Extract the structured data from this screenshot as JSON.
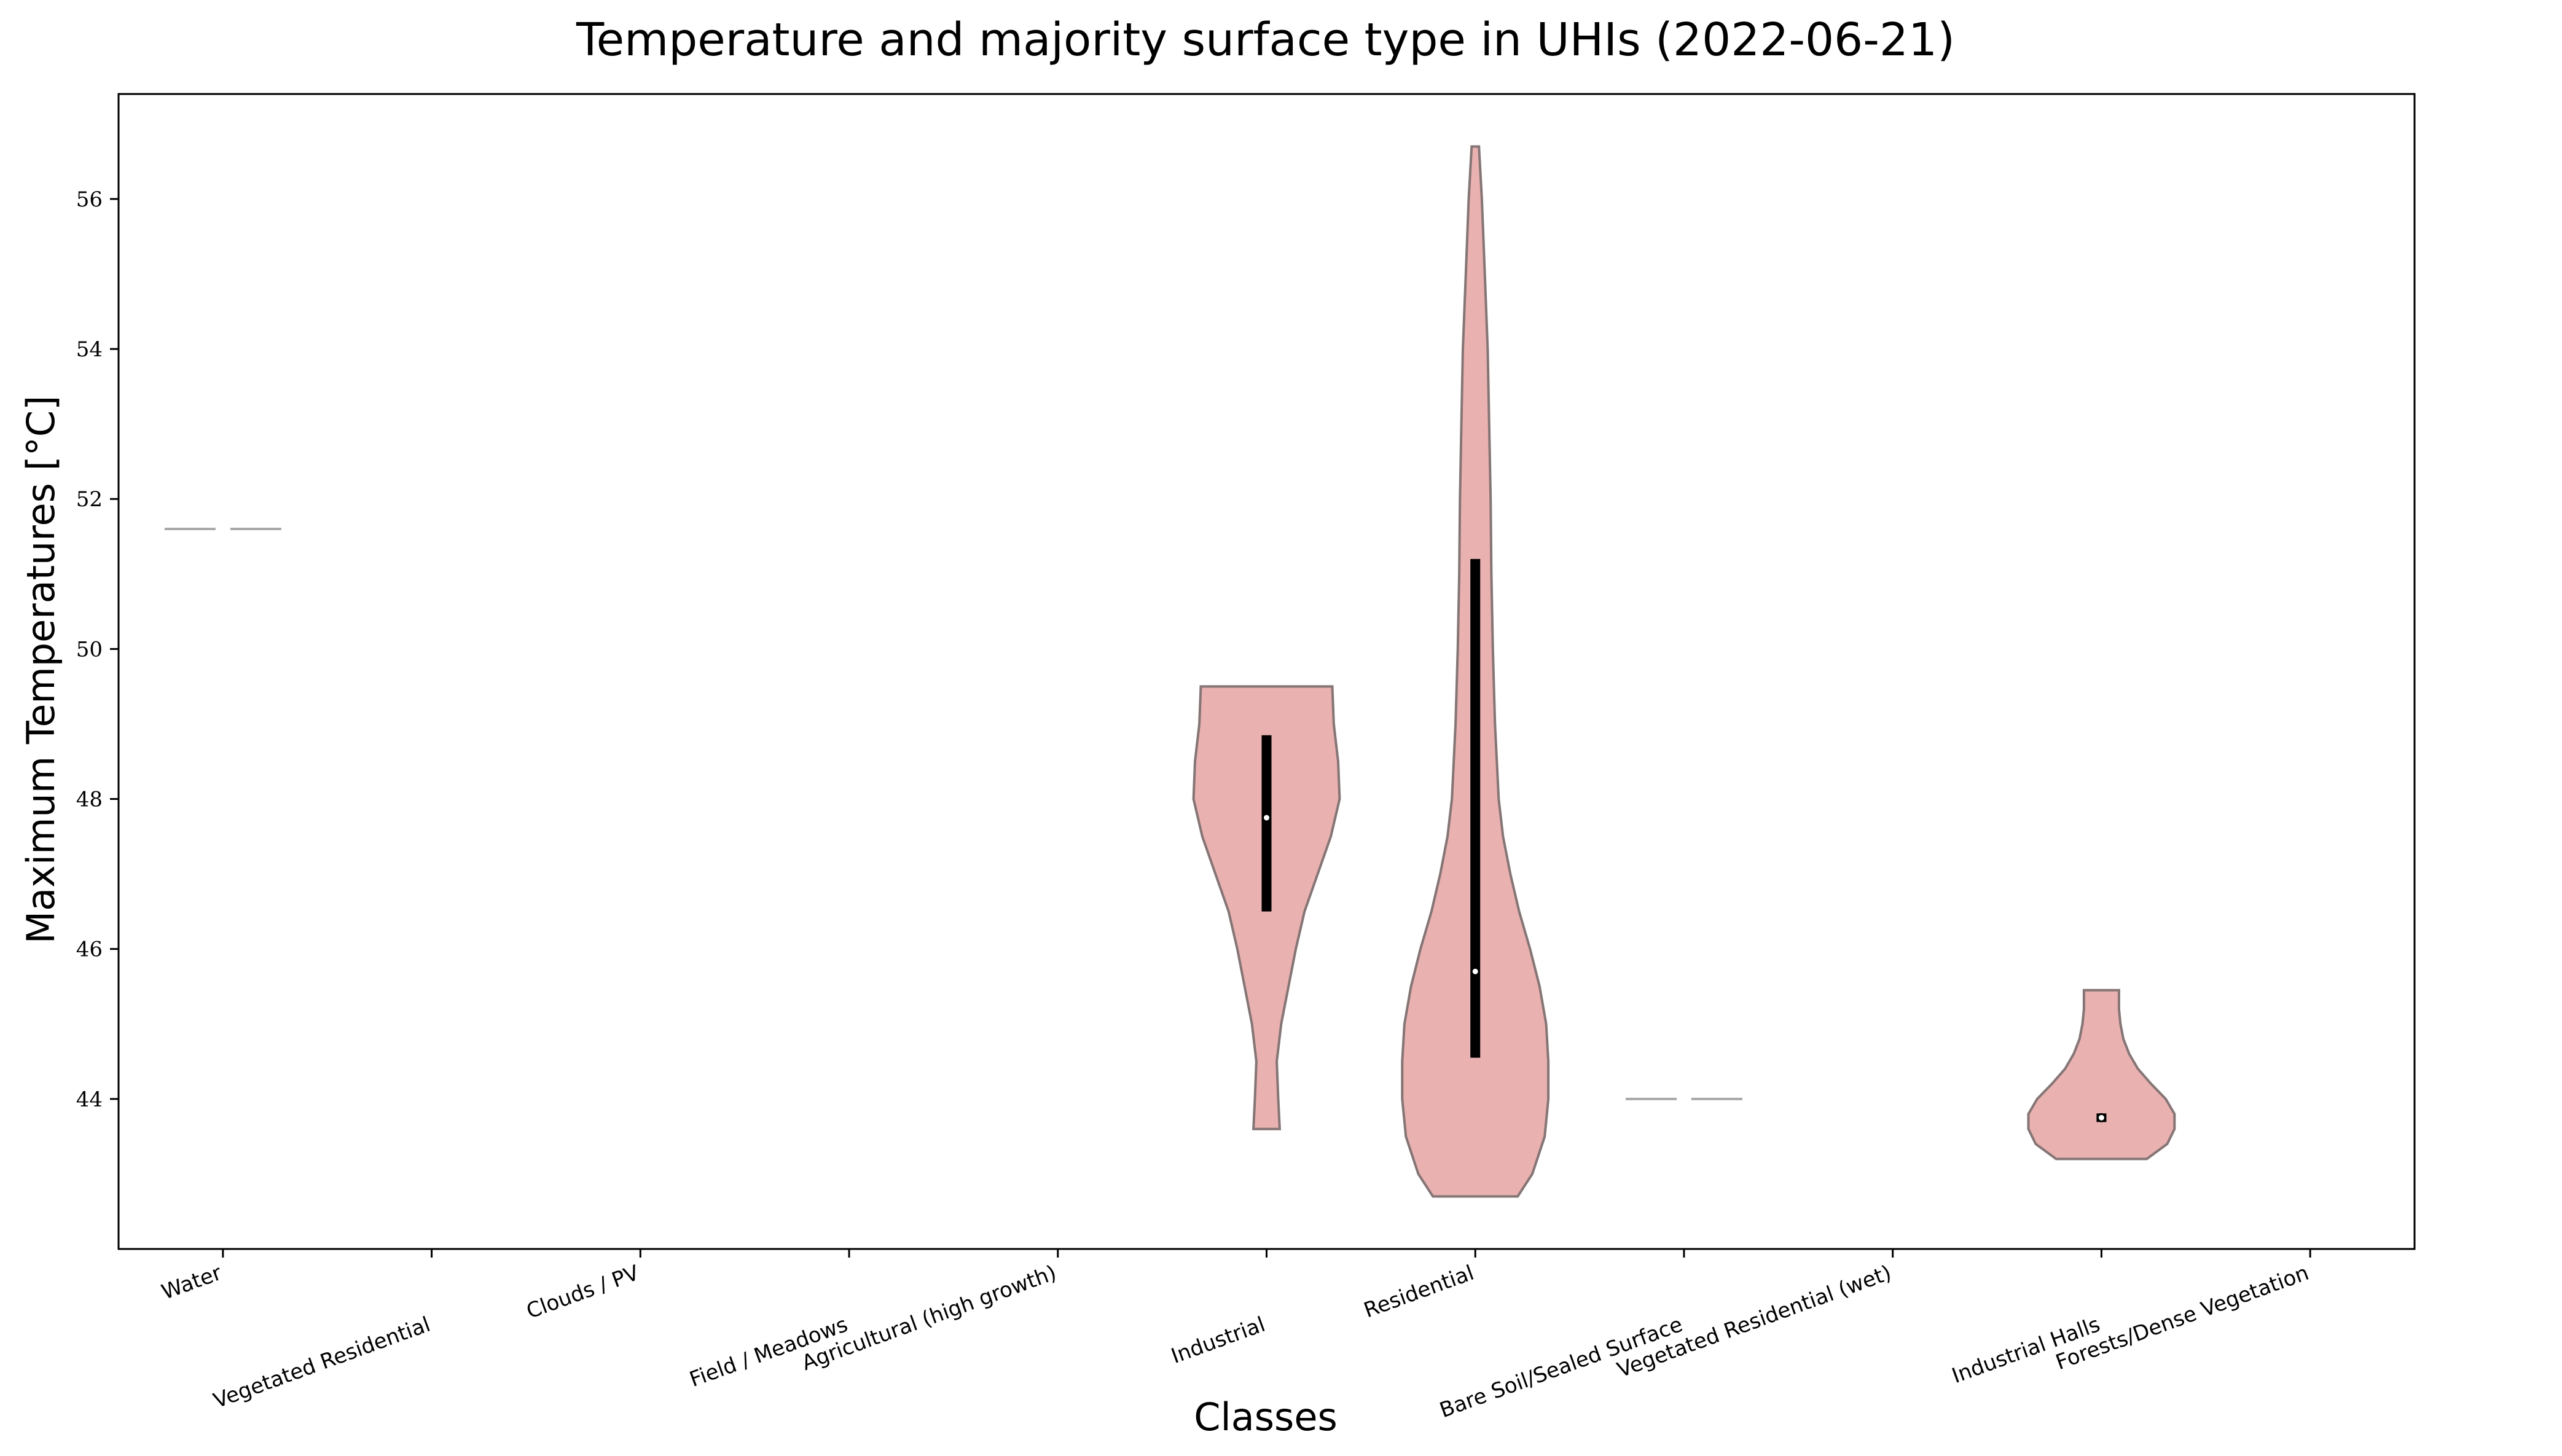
{
  "chart_data": {
    "type": "violin",
    "title": "Temperature and majority surface type in UHIs (2022-06-21)",
    "xlabel": "Classes",
    "ylabel": "Maximum Temperatures [°C]",
    "ylim": [
      42.0,
      57.4
    ],
    "yticks": [
      44,
      46,
      48,
      50,
      52,
      54,
      56
    ],
    "categories": [
      "Water",
      "Vegetated Residential",
      "Clouds / PV",
      "Field / Meadows",
      "Agricultural (high growth)",
      "Industrial",
      "Residential",
      "Bare Soil/Sealed Surface",
      "Vegetated Residential (wet)",
      "Industrial Halls",
      "Forests/Dense Vegetation"
    ],
    "grid": false,
    "colors": {
      "violin_fill": "#eab1b1",
      "violin_edge": "#857575",
      "flat_marker": "#a9a9a9",
      "iqr_bar": "#000000",
      "median": "#ffffff"
    },
    "violins": [
      {
        "category": "Water",
        "min": 51.6,
        "max": 51.6,
        "q1": 51.6,
        "median": 51.6,
        "q3": 51.6,
        "profile": []
      },
      {
        "category": "Industrial",
        "min": 43.6,
        "max": 49.5,
        "q1": 46.5,
        "median": 47.75,
        "q3": 48.85,
        "profile": [
          [
            43.6,
            0.18
          ],
          [
            44.0,
            0.16
          ],
          [
            44.5,
            0.14
          ],
          [
            45.0,
            0.2
          ],
          [
            45.5,
            0.3
          ],
          [
            46.0,
            0.4
          ],
          [
            46.5,
            0.52
          ],
          [
            47.0,
            0.7
          ],
          [
            47.5,
            0.88
          ],
          [
            48.0,
            1.0
          ],
          [
            48.5,
            0.98
          ],
          [
            49.0,
            0.92
          ],
          [
            49.5,
            0.9
          ]
        ]
      },
      {
        "category": "Residential",
        "min": 42.7,
        "max": 56.7,
        "q1": 44.55,
        "median": 45.7,
        "q3": 51.2,
        "profile": [
          [
            42.7,
            0.58
          ],
          [
            43.0,
            0.78
          ],
          [
            43.5,
            0.95
          ],
          [
            44.0,
            1.0
          ],
          [
            44.5,
            1.0
          ],
          [
            45.0,
            0.97
          ],
          [
            45.5,
            0.88
          ],
          [
            46.0,
            0.75
          ],
          [
            46.5,
            0.6
          ],
          [
            47.0,
            0.48
          ],
          [
            47.5,
            0.38
          ],
          [
            48.0,
            0.32
          ],
          [
            49.0,
            0.27
          ],
          [
            50.0,
            0.24
          ],
          [
            51.0,
            0.22
          ],
          [
            52.0,
            0.21
          ],
          [
            53.0,
            0.19
          ],
          [
            54.0,
            0.17
          ],
          [
            55.0,
            0.13
          ],
          [
            56.0,
            0.09
          ],
          [
            56.7,
            0.05
          ]
        ]
      },
      {
        "category": "Bare Soil/Sealed Surface",
        "min": 44.0,
        "max": 44.0,
        "q1": 44.0,
        "median": 44.0,
        "q3": 44.0,
        "profile": []
      },
      {
        "category": "Industrial Halls",
        "min": 43.2,
        "max": 45.45,
        "q1": 43.72,
        "median": 43.75,
        "q3": 43.78,
        "profile": [
          [
            43.2,
            0.62
          ],
          [
            43.4,
            0.9
          ],
          [
            43.6,
            1.0
          ],
          [
            43.8,
            1.0
          ],
          [
            44.0,
            0.88
          ],
          [
            44.2,
            0.68
          ],
          [
            44.4,
            0.5
          ],
          [
            44.6,
            0.38
          ],
          [
            44.8,
            0.3
          ],
          [
            45.0,
            0.26
          ],
          [
            45.2,
            0.24
          ],
          [
            45.45,
            0.24
          ]
        ]
      }
    ]
  }
}
